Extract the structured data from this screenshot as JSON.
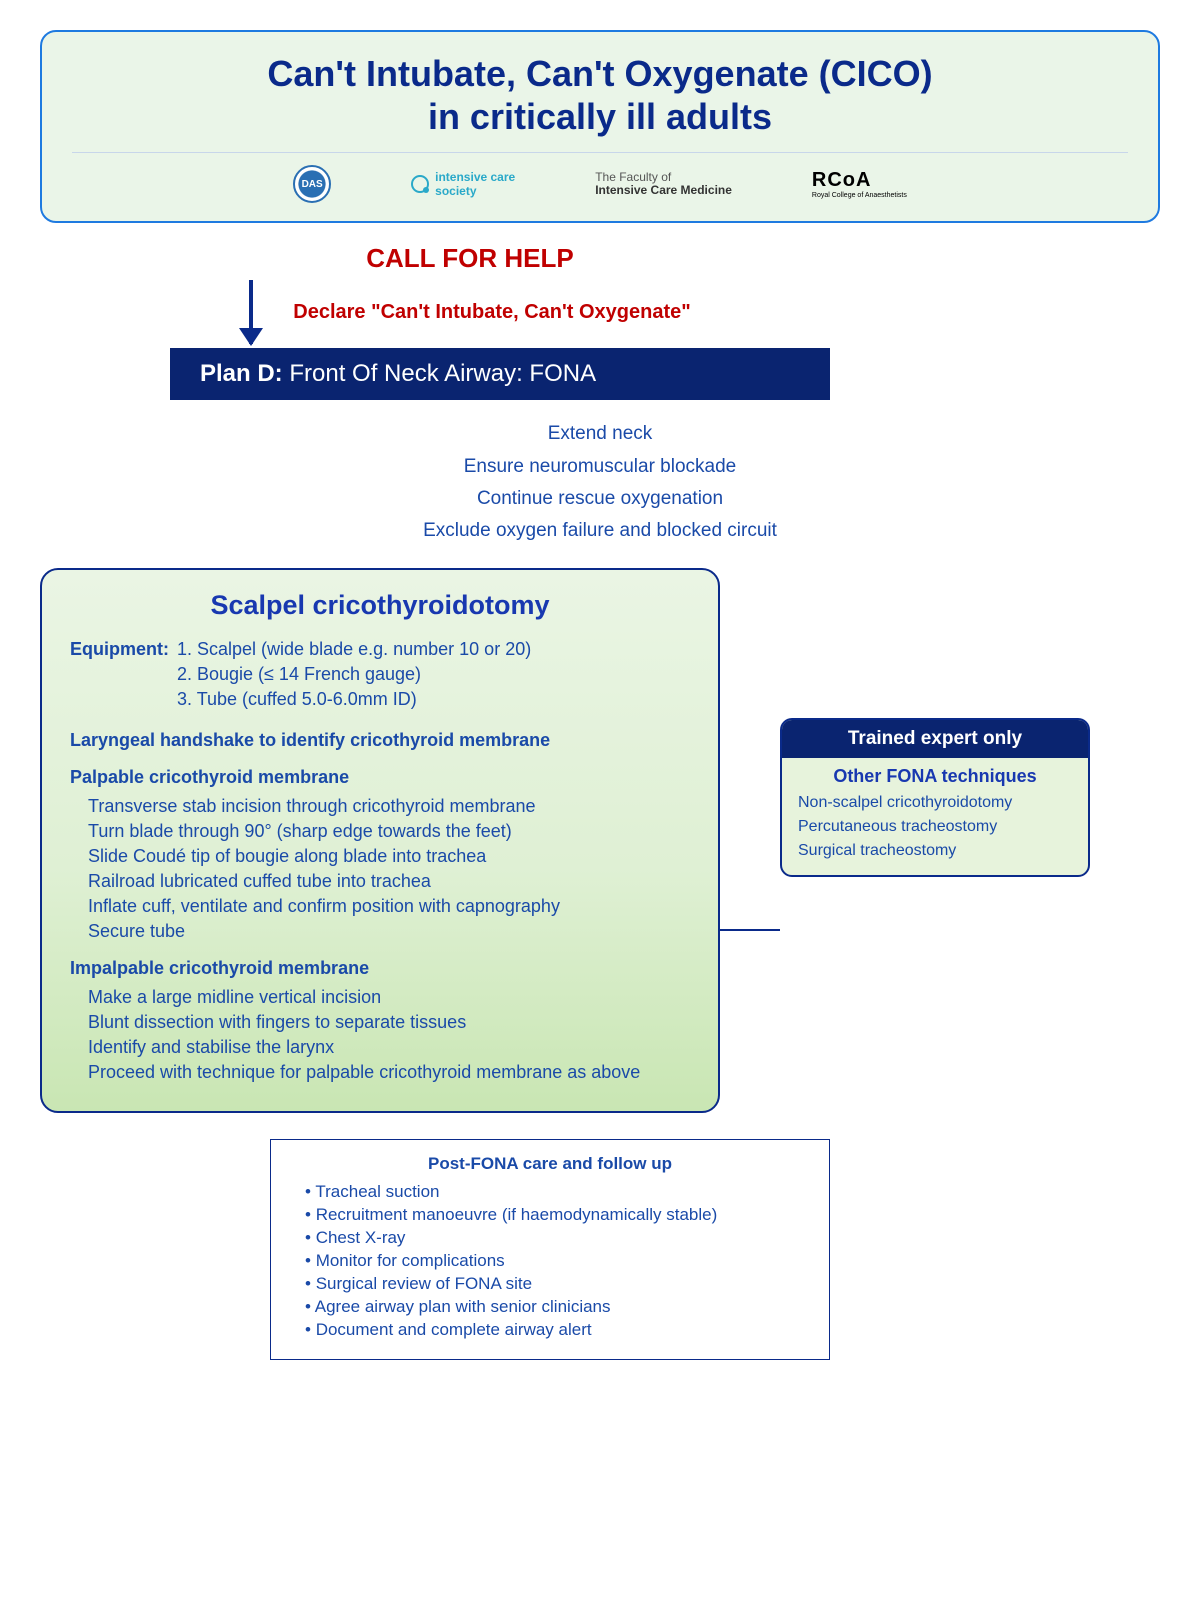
{
  "colors": {
    "border_blue": "#0a2a8a",
    "title_blue": "#0a2a8a",
    "text_blue": "#1a4aa8",
    "accent_blue": "#1838b0",
    "red": "#c00000",
    "bar_navy": "#0a2470",
    "bg_green_light": "#eaf5e8",
    "scalpel_grad_top": "#eaf5e4",
    "scalpel_grad_mid": "#dff0d4",
    "scalpel_grad_bot": "#c9e6b3",
    "expert_bg": "#e7f3dc"
  },
  "header": {
    "title_line1": "Can't Intubate, Can't Oxygenate (CICO)",
    "title_line2": "in critically ill adults",
    "logos": {
      "das": "DAS",
      "ics_line1": "intensive care",
      "ics_line2": "society",
      "ficm_line1": "The Faculty of",
      "ficm_line2": "Intensive Care Medicine",
      "rcoa": "RCoA",
      "rcoa_sub": "Royal College of Anaesthetists"
    }
  },
  "call_help": "CALL FOR HELP",
  "declare": "Declare \"Can't Intubate, Can't Oxygenate\"",
  "plan_bar": {
    "bold": "Plan D:",
    "rest": " Front Of Neck Airway: FONA"
  },
  "prep": [
    "Extend neck",
    "Ensure neuromuscular blockade",
    "Continue rescue oxygenation",
    "Exclude oxygen failure and blocked circuit"
  ],
  "scalpel": {
    "title": "Scalpel cricothyroidotomy",
    "equip_label": "Equipment:",
    "equipment": [
      "1.  Scalpel (wide blade e.g. number 10 or 20)",
      "2.  Bougie (≤ 14 French gauge)",
      "3.  Tube (cuffed 5.0-6.0mm ID)"
    ],
    "handshake": "Laryngeal handshake to identify cricothyroid membrane",
    "palpable_h": "Palpable cricothyroid membrane",
    "palpable": [
      "Transverse stab incision through cricothyroid membrane",
      "Turn blade through 90° (sharp edge towards the feet)",
      "Slide Coudé tip of bougie along blade into trachea",
      "Railroad lubricated cuffed tube into trachea",
      "Inflate cuff, ventilate and confirm position with capnography",
      "Secure tube"
    ],
    "impalpable_h": "Impalpable cricothyroid membrane",
    "impalpable": [
      "Make a large midline vertical incision",
      "Blunt dissection with fingers to separate tissues",
      "Identify and stabilise the larynx",
      "Proceed with technique for palpable cricothyroid membrane as above"
    ]
  },
  "expert": {
    "head": "Trained expert only",
    "sub": "Other FONA techniques",
    "items": [
      "Non-scalpel cricothyroidotomy",
      "Percutaneous tracheostomy",
      "Surgical tracheostomy"
    ]
  },
  "post": {
    "title": "Post-FONA care and follow up",
    "items": [
      "Tracheal suction",
      "Recruitment manoeuvre (if haemodynamically stable)",
      "Chest X-ray",
      "Monitor for complications",
      "Surgical review of FONA site",
      "Agree airway plan with senior clinicians",
      "Document and complete airway alert"
    ]
  }
}
